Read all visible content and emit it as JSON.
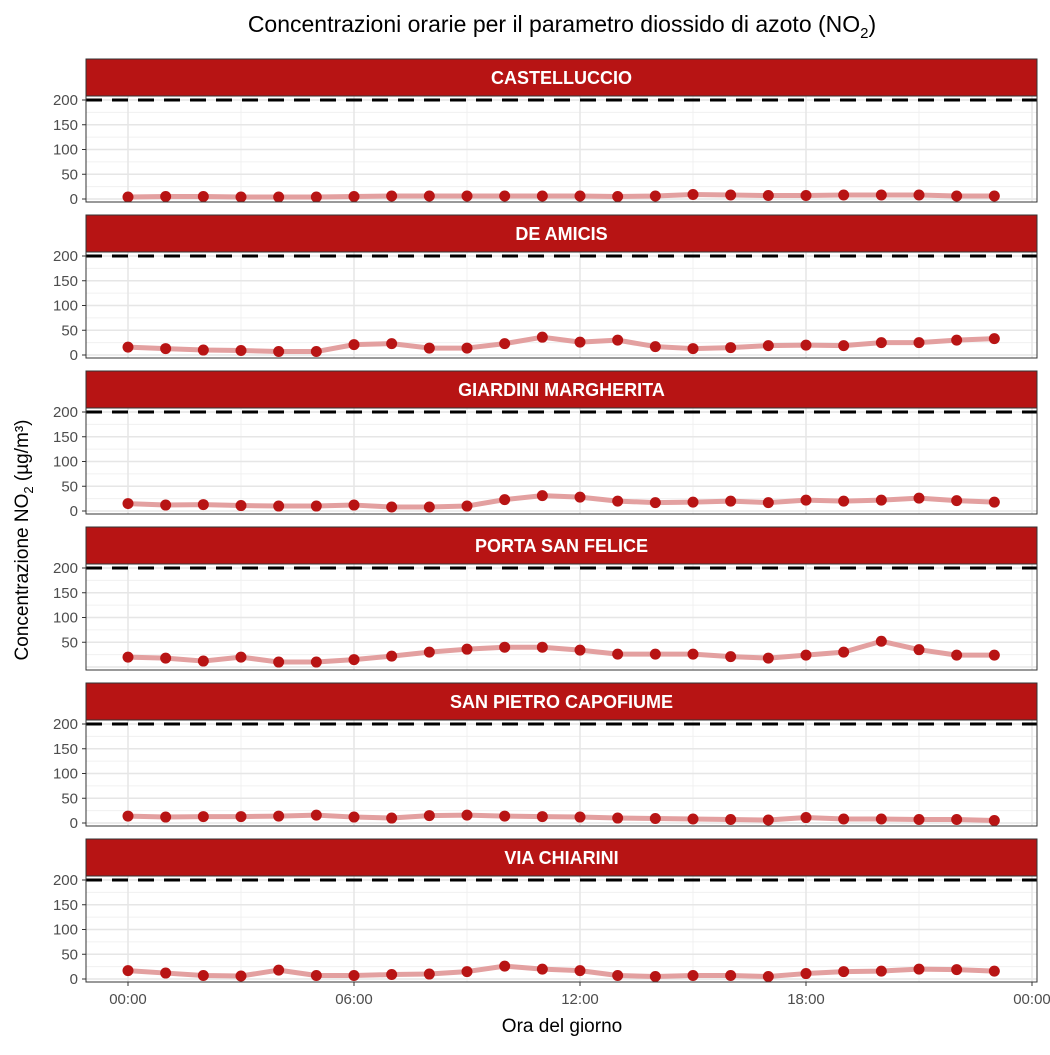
{
  "chart_data": {
    "type": "line",
    "title": "Concentrazioni orarie per il parametro diossido di azoto (NO",
    "title_sub": "2",
    "title_end": ")",
    "xlabel": "Ora del giorno",
    "ylabel": "Concentrazione NO",
    "ylabel_sub": "2",
    "ylabel_end": " (µg/m³)",
    "x_ticks": [
      "00:00",
      "06:00",
      "12:00",
      "18:00",
      "00:00"
    ],
    "x_hours": [
      0,
      1,
      2,
      3,
      4,
      5,
      6,
      7,
      8,
      9,
      10,
      11,
      12,
      13,
      14,
      15,
      16,
      17,
      18,
      19,
      20,
      21,
      22,
      23
    ],
    "xlim_hours": [
      0,
      24
    ],
    "ylim": [
      0,
      200
    ],
    "threshold": 200,
    "grid": true,
    "colors": {
      "strip": "#b71414",
      "point": "#b81414",
      "line": "#e3a0a0",
      "threshold": "#000000"
    },
    "panels": [
      {
        "name": "CASTELLUCCIO",
        "y_ticks": [
          "0",
          "50",
          "100",
          "150",
          "200"
        ],
        "values": [
          4,
          5,
          5,
          4,
          4,
          4,
          5,
          6,
          6,
          6,
          6,
          6,
          6,
          5,
          6,
          9,
          8,
          7,
          7,
          8,
          8,
          8,
          6,
          6
        ]
      },
      {
        "name": "DE AMICIS",
        "y_ticks": [
          "0",
          "50",
          "100",
          "150",
          "200"
        ],
        "values": [
          16,
          13,
          10,
          9,
          7,
          7,
          21,
          23,
          14,
          14,
          23,
          36,
          26,
          30,
          17,
          13,
          15,
          19,
          20,
          19,
          25,
          25,
          30,
          33
        ]
      },
      {
        "name": "GIARDINI MARGHERITA",
        "y_ticks": [
          "0",
          "50",
          "100",
          "150",
          "200"
        ],
        "values": [
          15,
          12,
          13,
          11,
          10,
          10,
          12,
          8,
          8,
          10,
          23,
          31,
          28,
          20,
          17,
          18,
          20,
          17,
          22,
          20,
          22,
          26,
          21,
          18
        ]
      },
      {
        "name": "PORTA SAN FELICE",
        "y_ticks": [
          "",
          "50",
          "100",
          "150",
          "200"
        ],
        "values": [
          20,
          18,
          12,
          20,
          10,
          10,
          15,
          22,
          30,
          36,
          40,
          40,
          34,
          26,
          26,
          26,
          21,
          18,
          24,
          30,
          52,
          35,
          24,
          24
        ]
      },
      {
        "name": "SAN PIETRO CAPOFIUME",
        "y_ticks": [
          "0",
          "50",
          "100",
          "150",
          "200"
        ],
        "values": [
          14,
          12,
          13,
          13,
          14,
          16,
          12,
          10,
          15,
          16,
          14,
          13,
          12,
          10,
          9,
          8,
          7,
          6,
          11,
          8,
          8,
          7,
          7,
          5
        ]
      },
      {
        "name": "VIA CHIARINI",
        "y_ticks": [
          "0",
          "50",
          "100",
          "150",
          "200"
        ],
        "values": [
          17,
          12,
          7,
          6,
          18,
          7,
          7,
          9,
          10,
          15,
          26,
          20,
          17,
          7,
          5,
          7,
          7,
          5,
          11,
          15,
          16,
          20,
          19,
          16
        ]
      }
    ]
  }
}
